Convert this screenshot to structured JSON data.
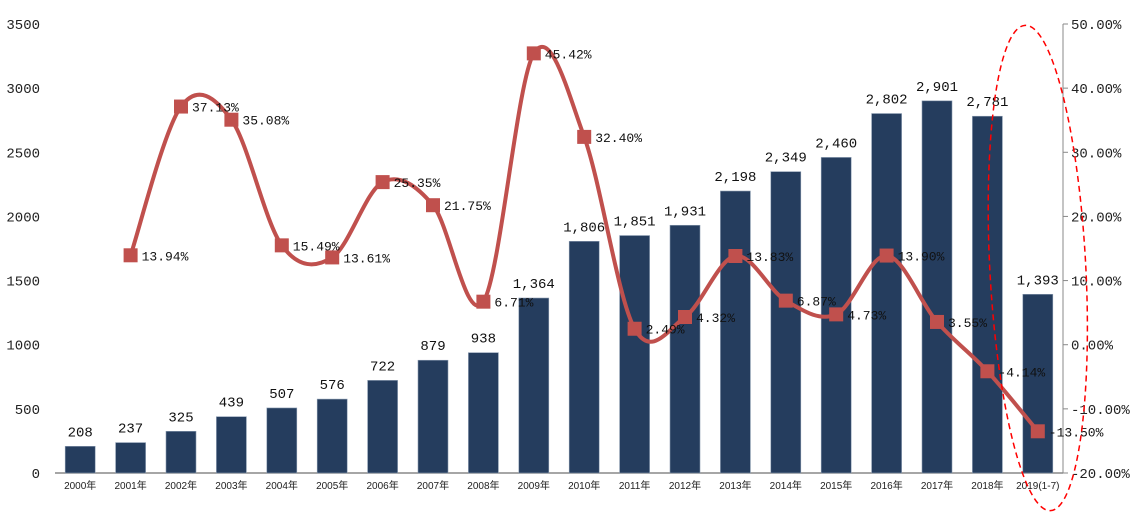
{
  "chart_data": {
    "type": "bar+line",
    "categories": [
      "2000年",
      "2001年",
      "2002年",
      "2003年",
      "2004年",
      "2005年",
      "2006年",
      "2007年",
      "2008年",
      "2009年",
      "2010年",
      "2011年",
      "2012年",
      "2013年",
      "2014年",
      "2015年",
      "2016年",
      "2017年",
      "2018年",
      "2019(1-7)"
    ],
    "series": [
      {
        "type": "bar",
        "axis": "left",
        "color": "#253d5e",
        "values": [
          208,
          237,
          325,
          439,
          507,
          576,
          722,
          879,
          938,
          1364,
          1806,
          1851,
          1931,
          2198,
          2349,
          2460,
          2802,
          2901,
          2781,
          1393
        ]
      },
      {
        "type": "line",
        "axis": "right",
        "smooth": true,
        "marker": "square",
        "color": "#c0504d",
        "values": [
          null,
          13.94,
          37.13,
          35.08,
          15.49,
          13.61,
          25.35,
          21.75,
          6.71,
          45.42,
          32.4,
          2.49,
          4.32,
          13.83,
          6.87,
          4.73,
          13.9,
          3.55,
          -4.14,
          -13.5
        ]
      }
    ],
    "ylim_left": [
      0,
      3500
    ],
    "yticks_left": [
      0,
      500,
      1000,
      1500,
      2000,
      2500,
      3000,
      3500
    ],
    "ylim_right": [
      -20,
      50
    ],
    "yticks_right": [
      "-20.00%",
      "-10.00%",
      "0.00%",
      "10.00%",
      "20.00%",
      "30.00%",
      "40.00%",
      "50.00%"
    ],
    "grid": false,
    "legend": "none",
    "annotation": {
      "shape": "dashed-ellipse",
      "color": "#ff0000",
      "target": "2019(1-7)"
    }
  }
}
